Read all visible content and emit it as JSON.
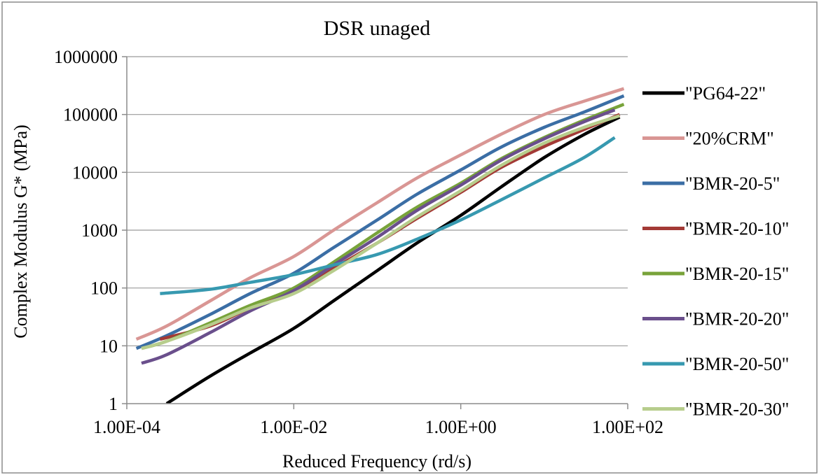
{
  "chart_data": {
    "type": "line",
    "title": "DSR unaged",
    "xlabel": "Reduced Frequency (rd/s)",
    "ylabel": "Complex Modulus G* (MPa)",
    "xscale": "log",
    "yscale": "log",
    "xlim": [
      0.0001,
      100
    ],
    "ylim": [
      1,
      1000000
    ],
    "xticks": [
      "1.00E-04",
      "1.00E-02",
      "1.00E+00",
      "1.00E+02"
    ],
    "yticks": [
      "1",
      "10",
      "100",
      "1000",
      "10000",
      "100000",
      "1000000"
    ],
    "grid": "horizontal",
    "legend_position": "right",
    "series": [
      {
        "name": "\"PG64-22\"",
        "color": "#000000",
        "x": [
          0.0003,
          0.001,
          0.003,
          0.01,
          0.03,
          0.1,
          0.3,
          1,
          3,
          10,
          30,
          80
        ],
        "y": [
          1,
          3,
          7.5,
          20,
          60,
          200,
          600,
          1800,
          5500,
          18000,
          45000,
          90000
        ]
      },
      {
        "name": "\"20%CRM\"",
        "color": "#d99694",
        "x": [
          0.00013,
          0.0003,
          0.001,
          0.003,
          0.01,
          0.03,
          0.1,
          0.3,
          1,
          3,
          10,
          30,
          90
        ],
        "y": [
          13,
          22,
          60,
          150,
          350,
          1000,
          3000,
          8000,
          20000,
          45000,
          100000,
          170000,
          280000
        ]
      },
      {
        "name": "\"BMR-20-5\"",
        "color": "#3b6ea5",
        "x": [
          0.00013,
          0.0003,
          0.001,
          0.003,
          0.01,
          0.03,
          0.1,
          0.3,
          1,
          3,
          10,
          30,
          90
        ],
        "y": [
          9,
          15,
          35,
          80,
          180,
          500,
          1500,
          4200,
          11000,
          27000,
          60000,
          110000,
          210000
        ]
      },
      {
        "name": "\"BMR-20-10\"",
        "color": "#a33a36",
        "x": [
          0.00025,
          0.001,
          0.003,
          0.01,
          0.03,
          0.1,
          0.3,
          1,
          3,
          10,
          30,
          80
        ],
        "y": [
          13,
          22,
          45,
          90,
          220,
          600,
          1600,
          4500,
          12000,
          28000,
          55000,
          100000
        ]
      },
      {
        "name": "\"BMR-20-15\"",
        "color": "#78a33a",
        "x": [
          0.00015,
          0.0003,
          0.001,
          0.003,
          0.01,
          0.03,
          0.1,
          0.3,
          1,
          3,
          10,
          30,
          90
        ],
        "y": [
          9,
          12,
          25,
          50,
          100,
          280,
          900,
          2500,
          6500,
          17000,
          40000,
          80000,
          150000
        ]
      },
      {
        "name": "\"BMR-20-20\"",
        "color": "#6a4f8c",
        "x": [
          0.00015,
          0.0003,
          0.001,
          0.003,
          0.01,
          0.03,
          0.1,
          0.3,
          1,
          3,
          10,
          30,
          70
        ],
        "y": [
          5,
          7,
          17,
          40,
          90,
          250,
          750,
          2200,
          6000,
          16000,
          38000,
          75000,
          120000
        ]
      },
      {
        "name": "\"BMR-20-50\"",
        "color": "#3799b0",
        "x": [
          0.00025,
          0.001,
          0.003,
          0.01,
          0.03,
          0.1,
          0.3,
          1,
          3,
          10,
          30,
          70
        ],
        "y": [
          80,
          95,
          125,
          170,
          250,
          380,
          700,
          1500,
          3300,
          8000,
          18000,
          40000
        ]
      },
      {
        "name": "\"BMR-20-30\"",
        "color": "#b7cd8c",
        "x": [
          0.00015,
          0.0003,
          0.001,
          0.003,
          0.01,
          0.03,
          0.1,
          0.3,
          1,
          3,
          10,
          30,
          80
        ],
        "y": [
          9,
          12,
          23,
          45,
          80,
          200,
          600,
          1700,
          4800,
          13000,
          32000,
          60000,
          95000
        ]
      }
    ]
  }
}
